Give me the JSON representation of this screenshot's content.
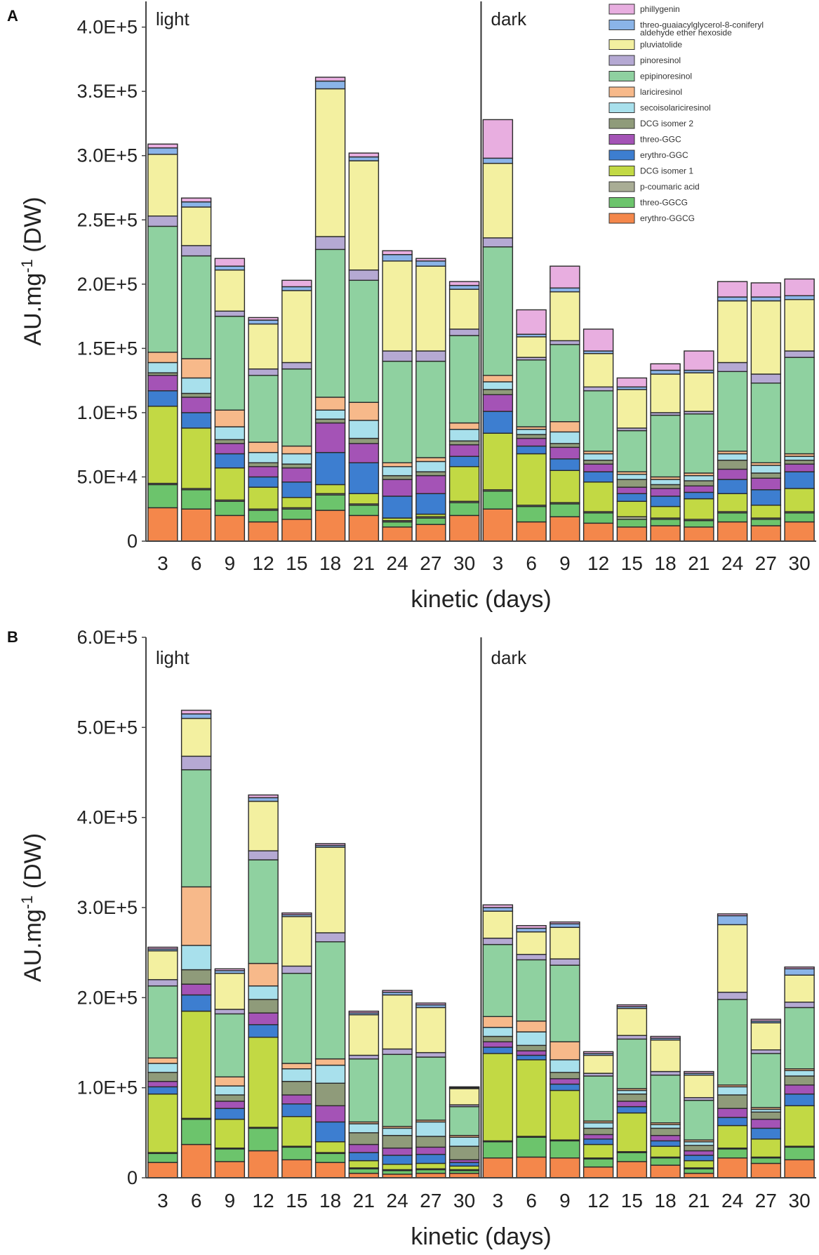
{
  "chart_data": [
    {
      "panel": "A",
      "type": "bar",
      "stacked": true,
      "ylabel": "AU.mg-1 (DW)",
      "xlabel": "kinetic (days)",
      "ylim": [
        0,
        420000
      ],
      "yticks": [
        0,
        50000,
        100000,
        150000,
        200000,
        250000,
        300000,
        350000,
        400000
      ],
      "ytick_labels": [
        "0",
        "5.0E+4",
        "1.0E+5",
        "1.5E+5",
        "2.0E+5",
        "2.5E+5",
        "3.0E+5",
        "3.5E+5",
        "4.0E+5"
      ],
      "groups": [
        {
          "label": "light",
          "categories": [
            "3",
            "6",
            "9",
            "12",
            "15",
            "18",
            "21",
            "24",
            "27",
            "30"
          ]
        },
        {
          "label": "dark",
          "categories": [
            "3",
            "6",
            "9",
            "12",
            "15",
            "18",
            "21",
            "24",
            "27",
            "30"
          ]
        }
      ],
      "legend": {
        "position": "top-right",
        "entries": [
          "phillygenin",
          "threo-guaiacylglycerol-8-coniferyl aldehyde ether hexoside",
          "pluviatolide",
          "pinoresinol",
          "epipinoresinol",
          "lariciresinol",
          "secoisolariciresinol",
          "DCG isomer 2",
          "threo-GGC",
          "erythro-GGC",
          "DCG isomer 1",
          "p-coumaric acid",
          "threo-GGCG",
          "erythro-GGCG"
        ]
      },
      "series": [
        {
          "name": "erythro-GGCG",
          "color": "#f4874b",
          "values": [
            26000,
            25000,
            20000,
            15000,
            17000,
            24000,
            20000,
            11000,
            13000,
            20000,
            25000,
            15000,
            19000,
            14000,
            11000,
            12000,
            11000,
            15000,
            12000,
            15000
          ]
        },
        {
          "name": "threo-GGCG",
          "color": "#6cc46c",
          "values": [
            18000,
            15000,
            11000,
            9000,
            8000,
            12000,
            8000,
            4000,
            5000,
            10000,
            14000,
            12000,
            10000,
            8000,
            6000,
            5000,
            5000,
            7000,
            5000,
            7000
          ]
        },
        {
          "name": "p-coumaric acid",
          "color": "#a9ad95",
          "values": [
            1000,
            1000,
            1000,
            1000,
            1000,
            1000,
            1000,
            1000,
            1000,
            1000,
            1000,
            1000,
            1000,
            1000,
            2000,
            1000,
            1000,
            1000,
            1000,
            1000
          ]
        },
        {
          "name": "DCG isomer 1",
          "color": "#c2d944",
          "values": [
            60000,
            47000,
            25000,
            17000,
            8000,
            7000,
            8000,
            2000,
            2000,
            27000,
            44000,
            40000,
            25000,
            23000,
            12000,
            9000,
            16000,
            14000,
            10000,
            18000
          ]
        },
        {
          "name": "erythro-GGC",
          "color": "#3d7ed0",
          "values": [
            12000,
            12000,
            11000,
            8000,
            12000,
            25000,
            24000,
            17000,
            16000,
            8000,
            17000,
            6000,
            9000,
            8000,
            6000,
            8000,
            5000,
            11000,
            12000,
            13000
          ]
        },
        {
          "name": "threo-GGC",
          "color": "#a453b6",
          "values": [
            12000,
            12000,
            8000,
            8000,
            11000,
            23000,
            15000,
            13000,
            14000,
            9000,
            13000,
            6000,
            9000,
            6000,
            5000,
            6000,
            5000,
            8000,
            9000,
            6000
          ]
        },
        {
          "name": "DCG isomer 2",
          "color": "#8f9b7a",
          "values": [
            2000,
            3000,
            3000,
            3000,
            3000,
            3000,
            4000,
            3000,
            3000,
            3000,
            4000,
            3000,
            3000,
            3000,
            6000,
            3000,
            4000,
            7000,
            4000,
            3000
          ]
        },
        {
          "name": "secoisolariciresinol",
          "color": "#a8e0ec",
          "values": [
            8000,
            12000,
            10000,
            8000,
            8000,
            7000,
            14000,
            7000,
            8000,
            9000,
            6000,
            4000,
            9000,
            5000,
            4000,
            4000,
            4000,
            5000,
            6000,
            3000
          ]
        },
        {
          "name": "lariciresinol",
          "color": "#f7b98a",
          "values": [
            8000,
            15000,
            13000,
            8000,
            6000,
            10000,
            14000,
            3000,
            3000,
            5000,
            5000,
            2000,
            8000,
            2000,
            2000,
            2000,
            2000,
            2000,
            2000,
            2000
          ]
        },
        {
          "name": "epipinoresinol",
          "color": "#8fd1a0",
          "values": [
            98000,
            80000,
            73000,
            52000,
            60000,
            115000,
            95000,
            79000,
            75000,
            68000,
            100000,
            52000,
            60000,
            47000,
            32000,
            48000,
            46000,
            62000,
            62000,
            75000
          ]
        },
        {
          "name": "pinoresinol",
          "color": "#b5a9d3",
          "values": [
            8000,
            8000,
            4000,
            5000,
            5000,
            10000,
            8000,
            8000,
            8000,
            5000,
            7000,
            2000,
            3000,
            3000,
            2000,
            2000,
            2000,
            7000,
            7000,
            5000
          ]
        },
        {
          "name": "pluviatolide",
          "color": "#f3f0a0",
          "values": [
            48000,
            30000,
            32000,
            35000,
            56000,
            115000,
            85000,
            70000,
            66000,
            31000,
            58000,
            16000,
            38000,
            26000,
            30000,
            30000,
            30000,
            48000,
            57000,
            40000
          ]
        },
        {
          "name": "threo-guaiacylglycerol-8-coniferyl aldehyde ether hexoside",
          "color": "#8ab4e8",
          "values": [
            5000,
            4000,
            3000,
            3000,
            3000,
            6000,
            3000,
            5000,
            4000,
            3000,
            4000,
            2000,
            3000,
            2000,
            2000,
            3000,
            2000,
            3000,
            3000,
            3000
          ]
        },
        {
          "name": "phillygenin",
          "color": "#e8aee0",
          "values": [
            3000,
            3000,
            6000,
            2000,
            5000,
            3000,
            3000,
            3000,
            2000,
            3000,
            30000,
            19000,
            17000,
            17000,
            7000,
            5000,
            15000,
            12000,
            11000,
            13000
          ]
        }
      ]
    },
    {
      "panel": "B",
      "type": "bar",
      "stacked": true,
      "ylabel": "AU.mg-1 (DW)",
      "xlabel": "kinetic (days)",
      "ylim": [
        0,
        600000
      ],
      "yticks": [
        0,
        100000,
        200000,
        300000,
        400000,
        500000,
        600000
      ],
      "ytick_labels": [
        "0",
        "1.0E+5",
        "2.0E+5",
        "3.0E+5",
        "4.0E+5",
        "5.0E+5",
        "6.0E+5"
      ],
      "groups": [
        {
          "label": "light",
          "categories": [
            "3",
            "6",
            "9",
            "12",
            "15",
            "18",
            "21",
            "24",
            "27",
            "30"
          ]
        },
        {
          "label": "dark",
          "categories": [
            "3",
            "6",
            "9",
            "12",
            "15",
            "18",
            "21",
            "24",
            "27",
            "30"
          ]
        }
      ],
      "series": [
        {
          "name": "erythro-GGCG",
          "color": "#f4874b",
          "values": [
            17000,
            37000,
            18000,
            30000,
            20000,
            17000,
            5000,
            4000,
            5000,
            5000,
            22000,
            23000,
            22000,
            12000,
            18000,
            14000,
            5000,
            22000,
            16000,
            20000
          ]
        },
        {
          "name": "threo-GGCG",
          "color": "#6cc46c",
          "values": [
            10000,
            28000,
            14000,
            25000,
            14000,
            10000,
            5000,
            4000,
            4000,
            3000,
            18000,
            22000,
            19000,
            9000,
            10000,
            8000,
            5000,
            10000,
            6000,
            14000
          ]
        },
        {
          "name": "p-coumaric acid",
          "color": "#a9ad95",
          "values": [
            1000,
            1000,
            1000,
            1000,
            1000,
            1000,
            1000,
            1000,
            1000,
            1000,
            1000,
            1000,
            1000,
            1000,
            1000,
            1000,
            1000,
            1000,
            1000,
            1000
          ]
        },
        {
          "name": "DCG isomer 1",
          "color": "#c2d944",
          "values": [
            65000,
            119000,
            32000,
            100000,
            33000,
            12000,
            8000,
            6000,
            6000,
            4000,
            97000,
            85000,
            55000,
            15000,
            43000,
            12000,
            8000,
            25000,
            20000,
            45000
          ]
        },
        {
          "name": "erythro-GGC",
          "color": "#3d7ed0",
          "values": [
            8000,
            18000,
            12000,
            14000,
            14000,
            22000,
            9000,
            10000,
            10000,
            4000,
            7000,
            5000,
            7000,
            6000,
            7000,
            6000,
            6000,
            9000,
            12000,
            13000
          ]
        },
        {
          "name": "threo-GGC",
          "color": "#a453b6",
          "values": [
            6000,
            12000,
            8000,
            13000,
            10000,
            18000,
            9000,
            8000,
            8000,
            3000,
            6000,
            5000,
            6000,
            5000,
            6000,
            6000,
            5000,
            10000,
            10000,
            10000
          ]
        },
        {
          "name": "DCG isomer 2",
          "color": "#8f9b7a",
          "values": [
            10000,
            16000,
            7000,
            15000,
            15000,
            25000,
            13000,
            14000,
            12000,
            15000,
            6000,
            6000,
            7000,
            7000,
            8000,
            8000,
            6000,
            15000,
            8000,
            10000
          ]
        },
        {
          "name": "secoisolariciresinol",
          "color": "#a8e0ec",
          "values": [
            10000,
            27000,
            10000,
            15000,
            14000,
            20000,
            10000,
            8000,
            16000,
            10000,
            10000,
            15000,
            14000,
            6000,
            4000,
            4000,
            4000,
            9000,
            3000,
            6000
          ]
        },
        {
          "name": "lariciresinol",
          "color": "#f7b98a",
          "values": [
            6000,
            65000,
            10000,
            25000,
            6000,
            7000,
            2000,
            2000,
            2000,
            2000,
            12000,
            12000,
            20000,
            2000,
            2000,
            2000,
            2000,
            2000,
            2000,
            2000
          ]
        },
        {
          "name": "epipinoresinol",
          "color": "#8fd1a0",
          "values": [
            80000,
            130000,
            70000,
            115000,
            100000,
            130000,
            70000,
            80000,
            70000,
            32000,
            80000,
            68000,
            85000,
            50000,
            55000,
            53000,
            44000,
            95000,
            60000,
            68000
          ]
        },
        {
          "name": "pinoresinol",
          "color": "#b5a9d3",
          "values": [
            7000,
            15000,
            5000,
            10000,
            8000,
            10000,
            4000,
            6000,
            5000,
            2000,
            7000,
            6000,
            7000,
            3000,
            4000,
            4000,
            3000,
            8000,
            4000,
            6000
          ]
        },
        {
          "name": "pluviatolide",
          "color": "#f3f0a0",
          "values": [
            32000,
            42000,
            40000,
            55000,
            55000,
            95000,
            45000,
            60000,
            50000,
            18000,
            30000,
            25000,
            35000,
            20000,
            30000,
            35000,
            25000,
            75000,
            30000,
            30000
          ]
        },
        {
          "name": "threo-guaiacylglycerol-8-coniferyl aldehyde ether hexoside",
          "color": "#8ab4e8",
          "values": [
            2000,
            5000,
            3000,
            4000,
            2000,
            2000,
            2000,
            3000,
            3000,
            1000,
            4000,
            4000,
            4000,
            2000,
            2000,
            2000,
            2000,
            10000,
            2000,
            7000
          ]
        },
        {
          "name": "phillygenin",
          "color": "#e8aee0",
          "values": [
            2000,
            4000,
            2000,
            3000,
            2000,
            2000,
            2000,
            2000,
            2000,
            1000,
            3000,
            3000,
            2000,
            2000,
            2000,
            2000,
            2000,
            2000,
            2000,
            2000
          ]
        }
      ]
    }
  ]
}
